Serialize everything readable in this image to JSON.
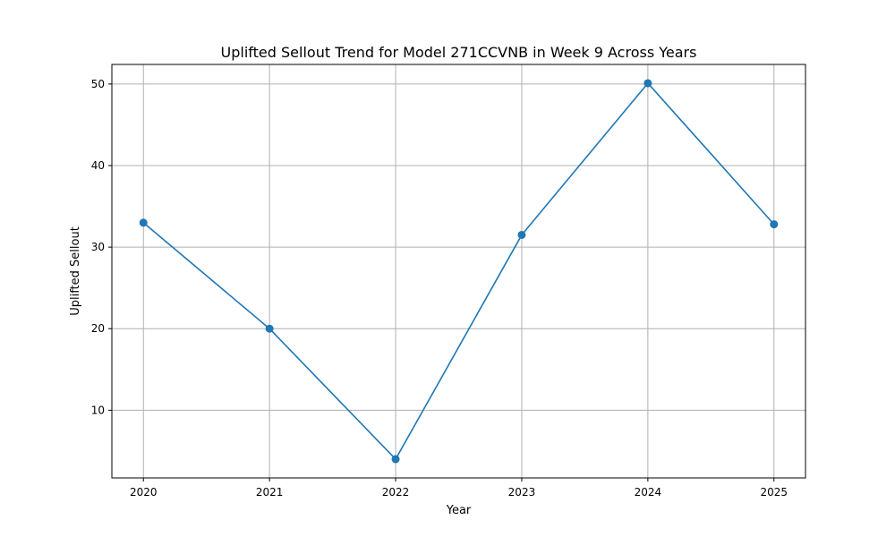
{
  "chart_data": {
    "type": "line",
    "title": "Uplifted Sellout Trend for Model 271CCVNB in Week 9 Across Years",
    "xlabel": "Year",
    "ylabel": "Uplifted Sellout",
    "x": [
      "2020",
      "2021",
      "2022",
      "2023",
      "2024",
      "2025"
    ],
    "series": [
      {
        "values": [
          33.0,
          20.0,
          4.0,
          31.5,
          50.1,
          32.8
        ]
      }
    ],
    "xlim": [
      2019.75,
      2025.25
    ],
    "ylim": [
      1.7,
      52.4
    ],
    "yticks": [
      10,
      20,
      30,
      40,
      50
    ],
    "grid": true,
    "line_color": "#1f77b4",
    "grid_color": "#b0b0b0",
    "marker": "circle"
  }
}
